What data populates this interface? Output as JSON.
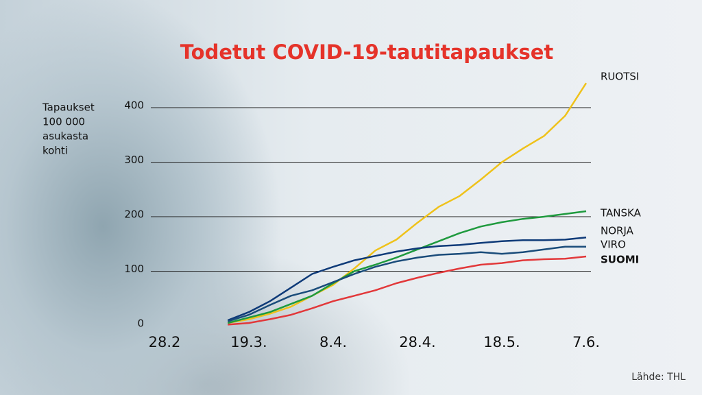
{
  "chart_data": {
    "type": "line",
    "title": "Todetut COVID-19-tautitapaukset",
    "y_label": [
      "Tapaukset",
      "100 000",
      "asukasta",
      "kohti"
    ],
    "source": "Lähde: THL",
    "categories": [
      "28.2",
      null,
      null,
      null,
      "19.3.",
      null,
      null,
      null,
      "8.4.",
      null,
      null,
      null,
      "28.4.",
      null,
      null,
      null,
      "18.5.",
      null,
      null,
      null,
      "7.6."
    ],
    "series": [
      {
        "name": "RUOTSI",
        "color": "#efc21a",
        "values": [
          null,
          null,
          null,
          5,
          12,
          22,
          35,
          55,
          75,
          105,
          138,
          158,
          189,
          218,
          238,
          268,
          300,
          325,
          348,
          385,
          445
        ]
      },
      {
        "name": "TANSKA",
        "color": "#1f9a3e",
        "values": [
          null,
          null,
          null,
          5,
          15,
          25,
          40,
          55,
          78,
          100,
          112,
          125,
          140,
          155,
          170,
          182,
          190,
          196,
          200,
          205,
          210
        ]
      },
      {
        "name": "NORJA",
        "color": "#0e3a78",
        "values": [
          null,
          null,
          null,
          10,
          25,
          45,
          70,
          95,
          108,
          120,
          128,
          136,
          142,
          146,
          148,
          152,
          155,
          157,
          157,
          158,
          162
        ]
      },
      {
        "name": "VIRO",
        "color": "#1a4c7a",
        "values": [
          null,
          null,
          null,
          8,
          20,
          38,
          55,
          65,
          80,
          95,
          108,
          118,
          125,
          130,
          132,
          135,
          132,
          135,
          140,
          145,
          145
        ]
      },
      {
        "name": "SUOMI",
        "color": "#e2383a",
        "values": [
          null,
          null,
          null,
          2,
          5,
          12,
          20,
          32,
          45,
          55,
          65,
          78,
          88,
          97,
          105,
          112,
          115,
          120,
          122,
          123,
          127
        ]
      }
    ],
    "ylim": [
      0,
      400
    ],
    "yticks": [
      0,
      100,
      200,
      300,
      400
    ],
    "grid": true
  }
}
